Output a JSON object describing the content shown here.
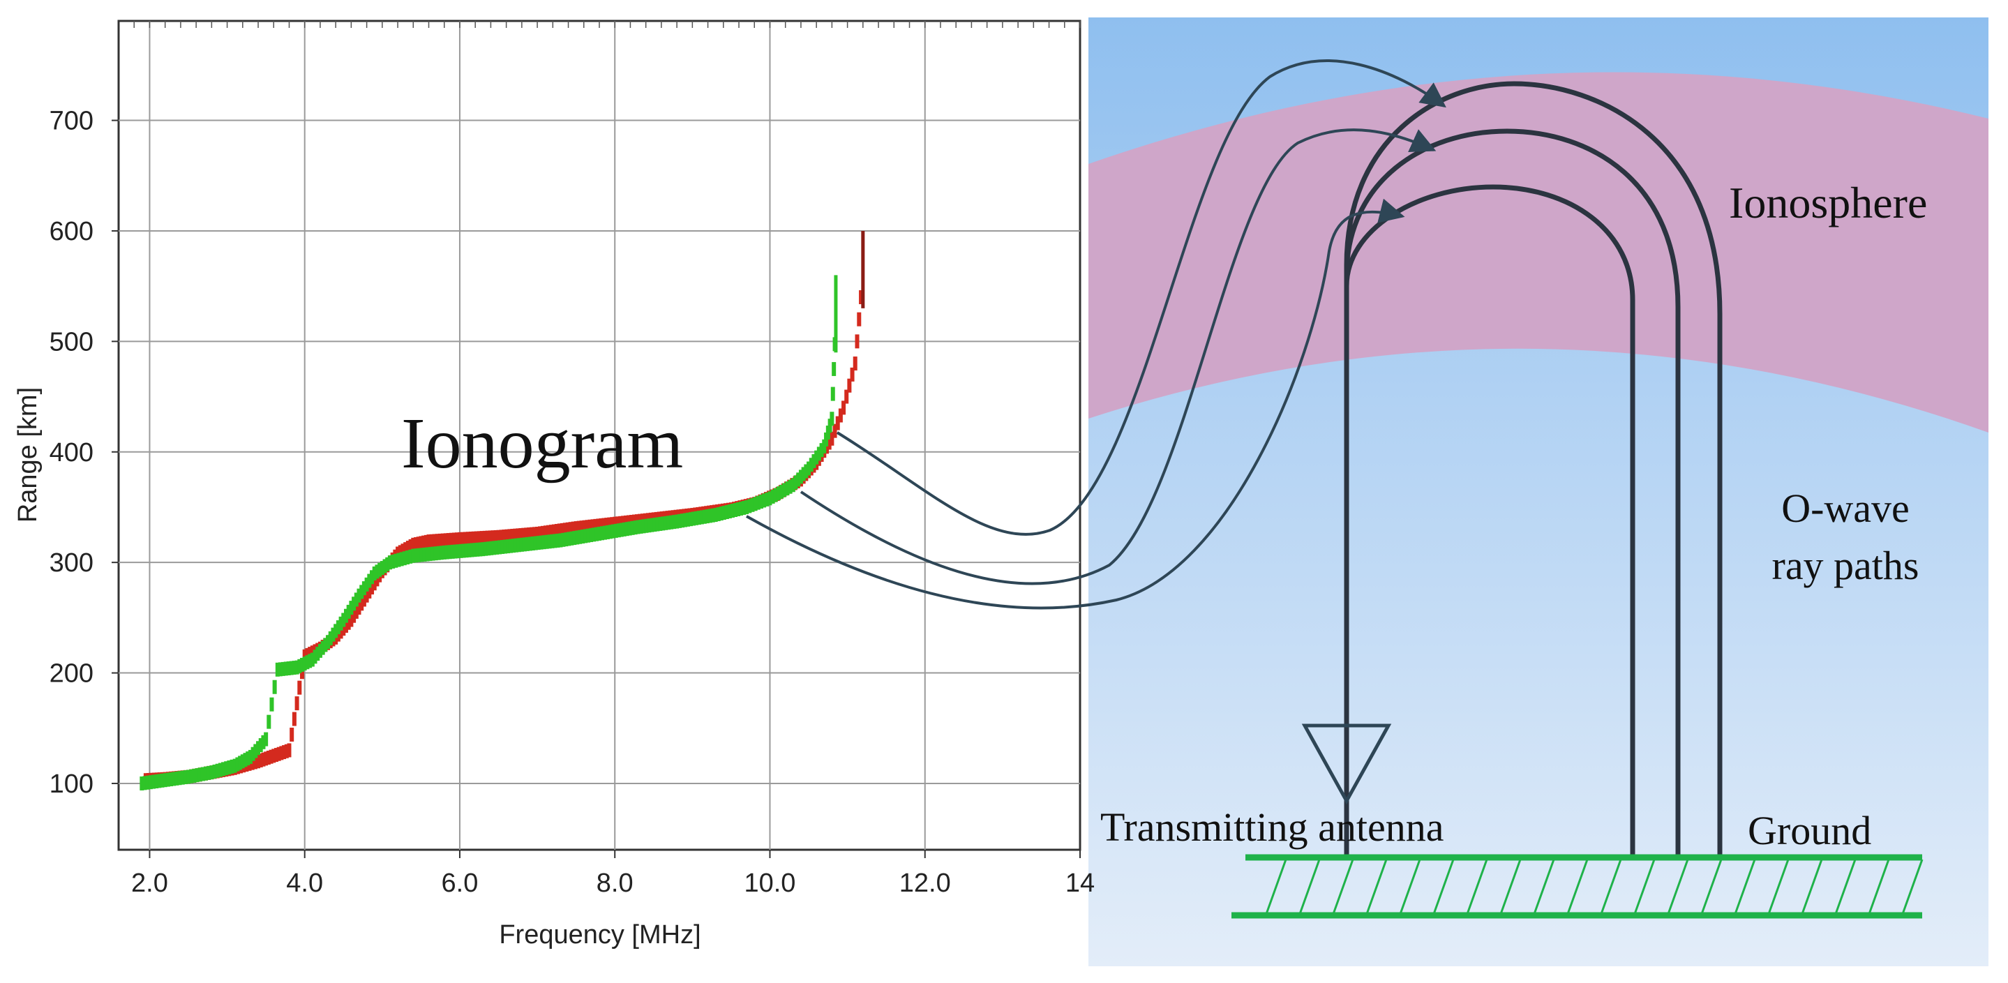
{
  "chart_data": {
    "type": "scatter",
    "xlabel": "Frequency [MHz]",
    "ylabel": "Range [km]",
    "xlim": [
      1.6,
      14.0
    ],
    "ylim": [
      40,
      790
    ],
    "x_ticks": [
      2.0,
      4.0,
      6.0,
      8.0,
      10.0,
      12.0,
      14.0
    ],
    "x_tick_labels": [
      "2.0",
      "4.0",
      "6.0",
      "8.0",
      "10.0",
      "12.0",
      "14"
    ],
    "y_ticks": [
      100,
      200,
      300,
      400,
      500,
      600,
      700
    ],
    "y_tick_labels": [
      "100",
      "200",
      "300",
      "400",
      "500",
      "600",
      "700"
    ],
    "grid": true,
    "annotation": "Ionogram",
    "series": [
      {
        "name": "red-trace",
        "color": "#d42a1e",
        "points": [
          [
            1.95,
            103
          ],
          [
            2.2,
            104
          ],
          [
            2.5,
            106
          ],
          [
            2.8,
            110
          ],
          [
            3.1,
            114
          ],
          [
            3.4,
            120
          ],
          [
            3.6,
            125
          ],
          [
            3.8,
            130
          ],
          [
            4.0,
            215
          ],
          [
            4.2,
            222
          ],
          [
            4.4,
            232
          ],
          [
            4.6,
            248
          ],
          [
            4.8,
            270
          ],
          [
            5.0,
            292
          ],
          [
            5.2,
            308
          ],
          [
            5.4,
            316
          ],
          [
            5.6,
            319
          ],
          [
            6.0,
            321
          ],
          [
            6.5,
            323
          ],
          [
            7.0,
            326
          ],
          [
            7.5,
            331
          ],
          [
            8.0,
            335
          ],
          [
            8.5,
            339
          ],
          [
            9.0,
            343
          ],
          [
            9.5,
            348
          ],
          [
            9.8,
            353
          ],
          [
            10.1,
            362
          ],
          [
            10.4,
            375
          ],
          [
            10.6,
            390
          ],
          [
            10.8,
            412
          ],
          [
            10.95,
            440
          ],
          [
            11.1,
            480
          ],
          [
            11.2,
            560
          ]
        ]
      },
      {
        "name": "green-trace",
        "color": "#2fc428",
        "points": [
          [
            1.9,
            100
          ],
          [
            2.2,
            103
          ],
          [
            2.5,
            106
          ],
          [
            2.8,
            110
          ],
          [
            3.1,
            116
          ],
          [
            3.3,
            124
          ],
          [
            3.5,
            140
          ],
          [
            3.65,
            203
          ],
          [
            3.9,
            205
          ],
          [
            4.1,
            212
          ],
          [
            4.3,
            228
          ],
          [
            4.5,
            248
          ],
          [
            4.7,
            270
          ],
          [
            4.9,
            290
          ],
          [
            5.1,
            300
          ],
          [
            5.4,
            306
          ],
          [
            5.8,
            309
          ],
          [
            6.3,
            312
          ],
          [
            6.8,
            316
          ],
          [
            7.3,
            320
          ],
          [
            7.8,
            326
          ],
          [
            8.3,
            332
          ],
          [
            8.8,
            337
          ],
          [
            9.3,
            343
          ],
          [
            9.7,
            350
          ],
          [
            10.0,
            358
          ],
          [
            10.3,
            370
          ],
          [
            10.5,
            385
          ],
          [
            10.7,
            405
          ],
          [
            10.8,
            430
          ],
          [
            10.85,
            520
          ]
        ]
      }
    ]
  },
  "diagram": {
    "ionosphere_label": "Ionosphere",
    "owave_label_line1": "O-wave",
    "owave_label_line2": "ray paths",
    "antenna_label": "Transmitting antenna",
    "ground_label": "Ground",
    "colors": {
      "sky_top": "#8fbfef",
      "sky_bottom": "#dfeaf8",
      "ionosphere": "#cfa6c9",
      "ray": "#2b3440",
      "ground": "#1fb24a",
      "curve": "#2e4656"
    }
  }
}
